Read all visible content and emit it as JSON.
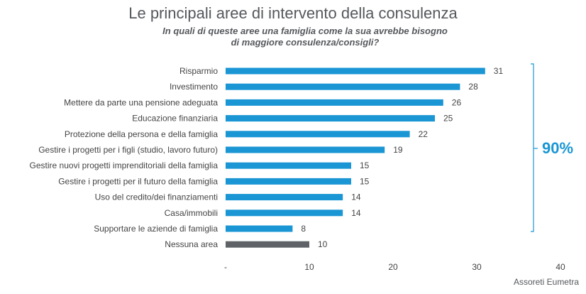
{
  "header": {
    "title": "Le principali aree di intervento della consulenza",
    "subtitle_line1": "In quali di queste aree una famiglia come la sua avrebbe bisogno",
    "subtitle_line2": "di maggiore consulenza/consigli?"
  },
  "bracket": {
    "label": "90%"
  },
  "source": "Assoreti Eumetra",
  "colors": {
    "primary": "#1a96d4",
    "highlight": "#5f6368",
    "bracket": "#1a96d4"
  },
  "chart_data": {
    "type": "bar",
    "orientation": "horizontal",
    "categories": [
      "Risparmio",
      "Investimento",
      "Mettere da parte una pensione adeguata",
      "Educazione finanziaria",
      "Protezione della persona e della famiglia",
      "Gestire i progetti per i figli (studio, lavoro futuro)",
      "Gestire nuovi progetti imprenditoriali della famiglia",
      "Gestire i progetti per il futuro della famiglia",
      "Uso del credito/dei finanziamenti",
      "Casa/immobili",
      "Supportare le aziende di famiglia",
      "Nessuna area"
    ],
    "values": [
      31,
      28,
      26,
      25,
      22,
      19,
      15,
      15,
      14,
      14,
      8,
      10
    ],
    "highlighted": [
      "Nessuna area"
    ],
    "xlim": [
      0,
      40
    ],
    "xticks": [
      "-",
      "10",
      "20",
      "30",
      "40"
    ],
    "grid": false
  }
}
